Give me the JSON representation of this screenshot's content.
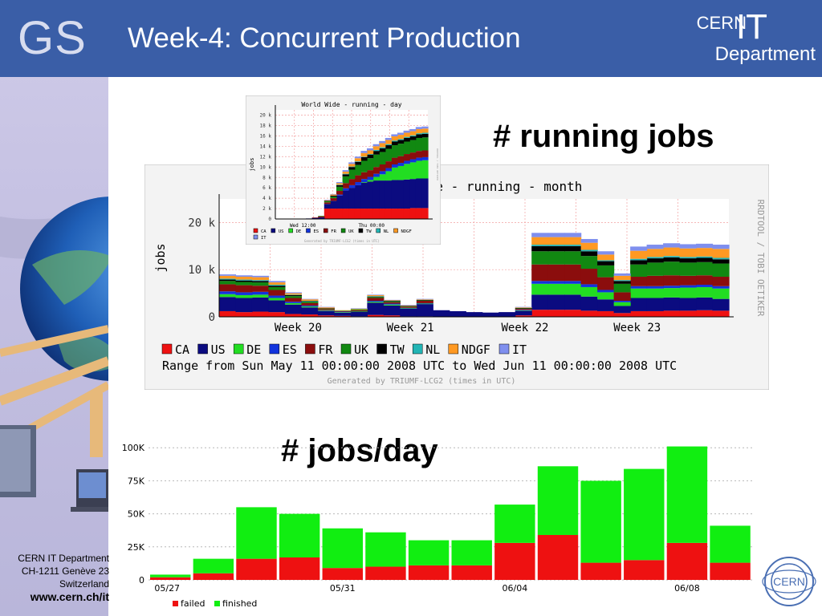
{
  "slide": {
    "logo_text": "GS",
    "title": "Week-4: Concurrent Production",
    "brand_cern": "CERN",
    "brand_it": "IT",
    "brand_department": "Department",
    "label_running": "# running jobs",
    "label_jobs_day": "# jobs/day",
    "cern_logo_text": "CERN",
    "footer": {
      "line1": "CERN IT Department",
      "line2": "CH-1211 Genève 23",
      "line3": "Switzerland",
      "url": "www.cern.ch/it"
    }
  },
  "colors": {
    "CA": "#ee1111",
    "US": "#0b0b80",
    "DE": "#22dd22",
    "ES": "#1133dd",
    "FR": "#8b0d0d",
    "UK": "#118811",
    "TW": "#000000",
    "NL": "#22b5b5",
    "NDGF": "#ff9922",
    "IT": "#7f8fee",
    "failed": "#ee1111",
    "finished": "#11ee11"
  },
  "chart_data": [
    {
      "type": "area",
      "title": "World Wide - running - month",
      "ylabel": "jobs",
      "side_label": "RRDTOOL / TOBI OETIKER",
      "ylim": [
        0,
        25000
      ],
      "y_ticks": [
        "0",
        "10 k",
        "20 k"
      ],
      "x_ticks": [
        "Week 20",
        "Week 21",
        "Week 22",
        "Week 23"
      ],
      "legend": [
        "CA",
        "US",
        "DE",
        "ES",
        "FR",
        "UK",
        "TW",
        "NL",
        "NDGF",
        "IT"
      ],
      "range_text": "Range from Sun May 11 00:00:00 2008 UTC   to Wed Jun 11 00:00:00 2008 UTC",
      "generated_text": "Generated by TRIUMF-LCG2 (times in UTC)",
      "series": [
        {
          "name": "CA",
          "values": [
            1200,
            1000,
            1100,
            1000,
            600,
            500,
            300,
            200,
            100,
            400,
            300,
            100,
            100,
            0,
            0,
            0,
            0,
            0,
            300,
            1500,
            1500,
            1500,
            1300,
            1200,
            800,
            1200,
            1200,
            1300,
            1300,
            1400,
            1300
          ]
        },
        {
          "name": "US",
          "values": [
            3000,
            3000,
            3000,
            2500,
            2000,
            1500,
            900,
            700,
            1000,
            2600,
            2100,
            1600,
            2600,
            1400,
            1200,
            1000,
            900,
            1000,
            1000,
            3200,
            3200,
            3200,
            3000,
            2500,
            1500,
            2800,
            2800,
            2800,
            2700,
            2700,
            2500
          ]
        },
        {
          "name": "DE",
          "values": [
            600,
            600,
            600,
            500,
            300,
            200,
            100,
            100,
            100,
            200,
            200,
            100,
            100,
            0,
            0,
            0,
            0,
            0,
            100,
            2300,
            2300,
            2300,
            2000,
            1500,
            800,
            2000,
            2000,
            2000,
            2200,
            2200,
            2200
          ]
        },
        {
          "name": "ES",
          "values": [
            600,
            600,
            600,
            500,
            300,
            200,
            100,
            100,
            0,
            200,
            200,
            100,
            100,
            0,
            0,
            0,
            0,
            0,
            100,
            600,
            600,
            600,
            600,
            500,
            300,
            500,
            500,
            500,
            500,
            500,
            500
          ]
        },
        {
          "name": "FR",
          "values": [
            1500,
            1500,
            1300,
            1200,
            800,
            500,
            200,
            100,
            200,
            600,
            300,
            200,
            500,
            0,
            0,
            0,
            0,
            0,
            200,
            3500,
            3500,
            3500,
            3300,
            2700,
            1800,
            2000,
            2200,
            2200,
            2000,
            2000,
            2000
          ]
        },
        {
          "name": "UK",
          "values": [
            700,
            700,
            700,
            600,
            400,
            300,
            100,
            100,
            200,
            200,
            200,
            100,
            100,
            0,
            0,
            0,
            0,
            0,
            100,
            2800,
            2800,
            2800,
            2700,
            2500,
            1800,
            2600,
            2800,
            2900,
            2800,
            2800,
            2800
          ]
        },
        {
          "name": "TW",
          "values": [
            300,
            300,
            300,
            300,
            200,
            100,
            100,
            0,
            0,
            100,
            100,
            100,
            100,
            0,
            0,
            0,
            0,
            0,
            100,
            1100,
            1100,
            1100,
            1000,
            900,
            600,
            900,
            900,
            900,
            900,
            900,
            900
          ]
        },
        {
          "name": "NL",
          "values": [
            200,
            200,
            200,
            200,
            100,
            100,
            0,
            0,
            0,
            100,
            0,
            0,
            0,
            0,
            0,
            0,
            0,
            0,
            0,
            300,
            300,
            300,
            300,
            200,
            200,
            300,
            300,
            300,
            300,
            300,
            300
          ]
        },
        {
          "name": "NDGF",
          "values": [
            600,
            600,
            600,
            500,
            300,
            300,
            200,
            100,
            100,
            200,
            100,
            100,
            100,
            0,
            0,
            0,
            0,
            0,
            100,
            1600,
            1600,
            1600,
            1500,
            1200,
            900,
            1700,
            1700,
            1800,
            1800,
            1800,
            1900
          ]
        },
        {
          "name": "IT",
          "values": [
            300,
            300,
            300,
            300,
            200,
            100,
            100,
            0,
            100,
            100,
            100,
            100,
            100,
            0,
            0,
            0,
            0,
            0,
            100,
            900,
            900,
            900,
            800,
            700,
            500,
            900,
            900,
            900,
            900,
            900,
            900
          ]
        }
      ]
    },
    {
      "type": "area",
      "title": "World Wide - running - day",
      "ylabel": "jobs",
      "side_label": "RRDTOOL / TOBI OETIKER",
      "ylim": [
        0,
        21000
      ],
      "y_ticks": [
        "0",
        "2 k",
        "4 k",
        "6 k",
        "8 k",
        "10 k",
        "12 k",
        "14 k",
        "16 k",
        "18 k",
        "20 k"
      ],
      "x_ticks": [
        "Wed 12:00",
        "Thu 00:00"
      ],
      "legend": [
        "CA",
        "US",
        "DE",
        "ES",
        "FR",
        "UK",
        "TW",
        "NL",
        "NDGF",
        "IT"
      ],
      "generated_text": "Generated by TRIUMF-LCG2 (times in UTC)",
      "series": [
        {
          "name": "CA",
          "values": [
            0,
            0,
            0,
            0,
            0,
            0,
            0,
            0,
            2000,
            2000,
            2000,
            2000,
            2000,
            2000,
            2000,
            2000,
            2000,
            2000,
            2000,
            2000,
            2000,
            2000,
            2100,
            2100,
            2100
          ]
        },
        {
          "name": "US",
          "values": [
            0,
            0,
            0,
            0,
            0,
            100,
            200,
            300,
            900,
            1500,
            2500,
            3500,
            4000,
            4500,
            5000,
            5200,
            5400,
            5400,
            5400,
            5500,
            5500,
            5600,
            5600,
            5700,
            5700
          ]
        },
        {
          "name": "DE",
          "values": [
            0,
            0,
            0,
            0,
            0,
            0,
            0,
            0,
            0,
            0,
            0,
            0,
            0,
            0,
            100,
            300,
            700,
            1200,
            1800,
            2400,
            2700,
            3000,
            3200,
            3400,
            3500
          ]
        },
        {
          "name": "ES",
          "values": [
            0,
            0,
            0,
            0,
            0,
            0,
            0,
            0,
            0,
            0,
            200,
            400,
            500,
            600,
            600,
            600,
            600,
            600,
            600,
            600,
            600,
            600,
            600,
            600,
            600
          ]
        },
        {
          "name": "FR",
          "values": [
            0,
            0,
            0,
            0,
            0,
            0,
            100,
            200,
            300,
            500,
            700,
            1000,
            1200,
            1300,
            1300,
            1300,
            1300,
            1300,
            1300,
            1300,
            1300,
            1300,
            1300,
            1300,
            1300
          ]
        },
        {
          "name": "UK",
          "values": [
            0,
            0,
            0,
            0,
            0,
            0,
            0,
            100,
            200,
            300,
            800,
            1300,
            1800,
            2000,
            2200,
            2300,
            2400,
            2400,
            2400,
            2400,
            2400,
            2400,
            2400,
            2500,
            2500
          ]
        },
        {
          "name": "TW",
          "values": [
            0,
            0,
            0,
            0,
            0,
            0,
            0,
            0,
            100,
            200,
            300,
            400,
            500,
            600,
            700,
            700,
            700,
            700,
            700,
            700,
            700,
            700,
            700,
            700,
            700
          ]
        },
        {
          "name": "NL",
          "values": [
            0,
            0,
            0,
            0,
            0,
            0,
            0,
            0,
            0,
            0,
            100,
            100,
            100,
            100,
            100,
            100,
            200,
            200,
            200,
            200,
            200,
            200,
            200,
            200,
            200
          ]
        },
        {
          "name": "NDGF",
          "values": [
            0,
            0,
            0,
            0,
            0,
            0,
            0,
            0,
            100,
            200,
            300,
            400,
            500,
            600,
            700,
            700,
            700,
            800,
            800,
            800,
            800,
            800,
            800,
            800,
            800
          ]
        },
        {
          "name": "IT",
          "values": [
            0,
            0,
            0,
            0,
            0,
            0,
            0,
            0,
            100,
            100,
            200,
            300,
            300,
            300,
            400,
            400,
            400,
            400,
            400,
            400,
            400,
            400,
            400,
            400,
            400
          ]
        }
      ]
    },
    {
      "type": "bar",
      "stacked": true,
      "ylim": [
        0,
        105000
      ],
      "y_ticks": [
        "0",
        "25K",
        "50K",
        "75K",
        "100K"
      ],
      "x_ticks": [
        "05/27",
        "05/31",
        "06/04",
        "06/08"
      ],
      "legend": [
        "failed",
        "finished"
      ],
      "grid": true,
      "series": [
        {
          "name": "failed",
          "values": [
            2000,
            5000,
            16000,
            17000,
            9000,
            10000,
            11000,
            11000,
            28000,
            34000,
            13000,
            15000,
            28000,
            13000
          ]
        },
        {
          "name": "finished",
          "values": [
            2000,
            11000,
            39000,
            33000,
            30000,
            26000,
            19000,
            19000,
            29000,
            52000,
            62000,
            69000,
            73000,
            28000
          ]
        }
      ]
    }
  ]
}
